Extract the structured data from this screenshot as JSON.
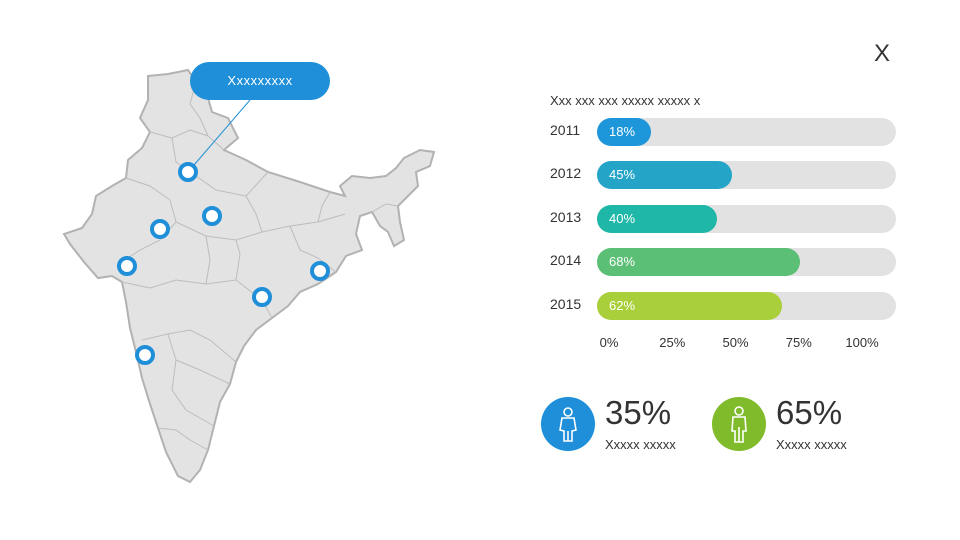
{
  "corner_title": "X",
  "callout_label": "Xxxxxxxxx",
  "colors": {
    "map_fill": "#e3e3e3",
    "map_stroke": "#b2b2b2",
    "pin_blue": "#1e8fd8",
    "track": "#e2e2e2"
  },
  "chart_data": {
    "type": "bar",
    "orientation": "horizontal",
    "title": "Xxx xxx xxx xxxxx xxxxx x",
    "categories": [
      "2011",
      "2012",
      "2013",
      "2014",
      "2015"
    ],
    "values": [
      18,
      45,
      40,
      68,
      62
    ],
    "value_labels": [
      "18%",
      "45%",
      "40%",
      "68%",
      "62%"
    ],
    "bar_colors": [
      "#1d97da",
      "#24a5c8",
      "#1fb7a8",
      "#5bbf75",
      "#a9cf3a"
    ],
    "xlim": [
      0,
      100
    ],
    "x_ticks": [
      "0%",
      "25%",
      "50%",
      "75%",
      "100%"
    ]
  },
  "stats": [
    {
      "value": "35%",
      "caption": "Xxxxx xxxxx",
      "color": "#1e8fd8",
      "icon": "female-icon"
    },
    {
      "value": "65%",
      "caption": "Xxxxx xxxxx",
      "color": "#7fbb2a",
      "icon": "male-icon"
    }
  ]
}
